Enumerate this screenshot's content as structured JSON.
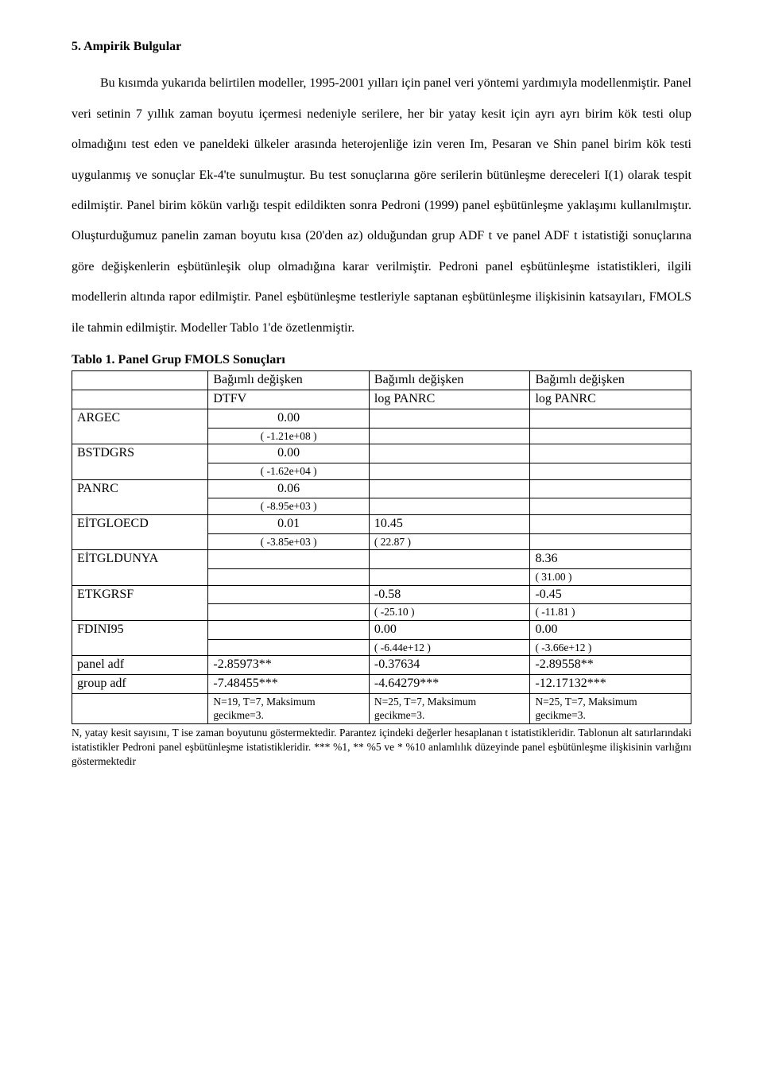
{
  "heading": "5. Ampirik Bulgular",
  "para1": "Bu kısımda yukarıda belirtilen modeller, 1995-2001 yılları için panel veri yöntemi yardımıyla modellenmiştir. Panel veri setinin 7 yıllık zaman boyutu içermesi nedeniyle serilere, her bir yatay kesit için ayrı ayrı birim kök testi olup olmadığını test eden ve paneldeki ülkeler arasında heterojenliğe izin veren Im, Pesaran ve Shin panel birim kök testi uygulanmış ve sonuçlar Ek-4'te sunulmuştur. Bu test sonuçlarına göre serilerin bütünleşme dereceleri I(1) olarak tespit edilmiştir. Panel birim kökün varlığı tespit edildikten sonra Pedroni (1999) panel eşbütünleşme yaklaşımı kullanılmıştır. Oluşturduğumuz panelin zaman boyutu kısa (20'den az) olduğundan grup ADF t ve panel ADF t istatistiği sonuçlarına göre değişkenlerin eşbütünleşik olup olmadığına karar verilmiştir. Pedroni panel eşbütünleşme istatistikleri, ilgili modellerin altında rapor edilmiştir. Panel eşbütünleşme testleriyle saptanan eşbütünleşme ilişkisinin katsayıları, FMOLS ile tahmin edilmiştir. Modeller Tablo 1'de özetlenmiştir.",
  "table": {
    "title": "Tablo 1. Panel Grup FMOLS Sonuçları",
    "header": {
      "dep_label": "Bağımlı değişken",
      "c1": "DTFV",
      "c2": "log PANRC",
      "c3": "log PANRC"
    },
    "rows": {
      "ARGEC": {
        "label": "ARGEC",
        "v1": "0.00",
        "t1": "( -1.21e+08 )",
        "v2": "",
        "t2": "",
        "v3": "",
        "t3": ""
      },
      "BSTDGRS": {
        "label": "BSTDGRS",
        "v1": "0.00",
        "t1": "( -1.62e+04 )",
        "v2": "",
        "t2": "",
        "v3": "",
        "t3": ""
      },
      "PANRC": {
        "label": "PANRC",
        "v1": "0.06",
        "t1": "( -8.95e+03 )",
        "v2": "",
        "t2": "",
        "v3": "",
        "t3": ""
      },
      "EITGLOECD": {
        "label": "EİTGLOECD",
        "v1": "0.01",
        "t1": "( -3.85e+03 )",
        "v2": "10.45",
        "t2": "( 22.87 )",
        "v3": "",
        "t3": ""
      },
      "EITGLDUNYA": {
        "label": "EİTGLDUNYA",
        "v1": "",
        "t1": "",
        "v2": "",
        "t2": "",
        "v3": "8.36",
        "t3": "( 31.00 )"
      },
      "ETKGRSF": {
        "label": "ETKGRSF",
        "v1": "",
        "t1": "",
        "v2": "-0.58",
        "t2": "( -25.10 )",
        "v3": "-0.45",
        "t3": "( -11.81 )"
      },
      "FDINI95": {
        "label": "FDINI95",
        "v1": "",
        "t1": "",
        "v2": "0.00",
        "t2": "( -6.44e+12 )",
        "v3": "0.00",
        "t3": "( -3.66e+12 )"
      }
    },
    "panel_adf": {
      "label": "panel adf",
      "c1": "-2.85973**",
      "c2": "-0.37634",
      "c3": "-2.89558**"
    },
    "group_adf": {
      "label": "group adf",
      "c1": "-7.48455***",
      "c2": "-4.64279***",
      "c3": "-12.17132***"
    },
    "notes": {
      "c1": "N=19, T=7, Maksimum gecikme=3.",
      "c2": "N=25, T=7, Maksimum gecikme=3.",
      "c3": "N=25, T=7, Maksimum gecikme=3."
    }
  },
  "footnote": "N, yatay kesit sayısını, T ise zaman boyutunu göstermektedir.\nParantez içindeki değerler hesaplanan t istatistikleridir. Tablonun alt satırlarındaki istatistikler Pedroni panel eşbütünleşme istatistikleridir. *** %1, ** %5 ve * %10 anlamlılık düzeyinde panel eşbütünleşme ilişkisinin varlığını göstermektedir"
}
